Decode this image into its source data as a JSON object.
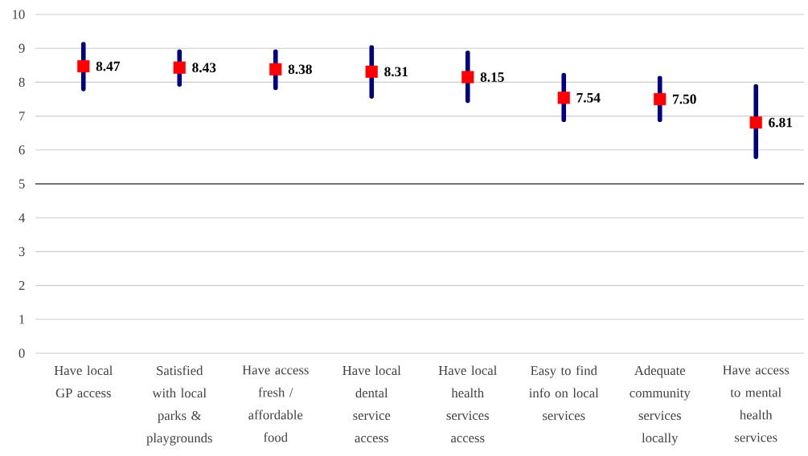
{
  "chart_data": {
    "type": "scatter",
    "categories": [
      "Have local GP access",
      "Satisfied with local parks & playgrounds",
      "Have access fresh / affordable food",
      "Have local dental service access",
      "Have local health services access",
      "Easy to find info on local services",
      "Adequate community services locally",
      "Have access to mental health services"
    ],
    "values": [
      8.47,
      8.43,
      8.38,
      8.31,
      8.15,
      7.54,
      7.5,
      6.81
    ],
    "errors": [
      [
        7.8,
        9.12
      ],
      [
        7.93,
        8.9
      ],
      [
        7.83,
        8.9
      ],
      [
        7.58,
        9.03
      ],
      [
        7.45,
        8.87
      ],
      [
        6.89,
        8.21
      ],
      [
        6.89,
        8.12
      ],
      [
        5.8,
        7.88
      ]
    ],
    "value_labels": [
      "8.47",
      "8.43",
      "8.38",
      "8.31",
      "8.15",
      "7.54",
      "7.50",
      "6.81"
    ],
    "color": "#ff0000",
    "marker": "square",
    "ylim": [
      0,
      10
    ],
    "yticks": [
      0,
      1,
      2,
      3,
      4,
      5,
      6,
      7,
      8,
      9,
      10
    ],
    "grid": "y",
    "ref_lines": [
      {
        "axis": "y",
        "value": 5,
        "color": "#000000"
      }
    ]
  }
}
